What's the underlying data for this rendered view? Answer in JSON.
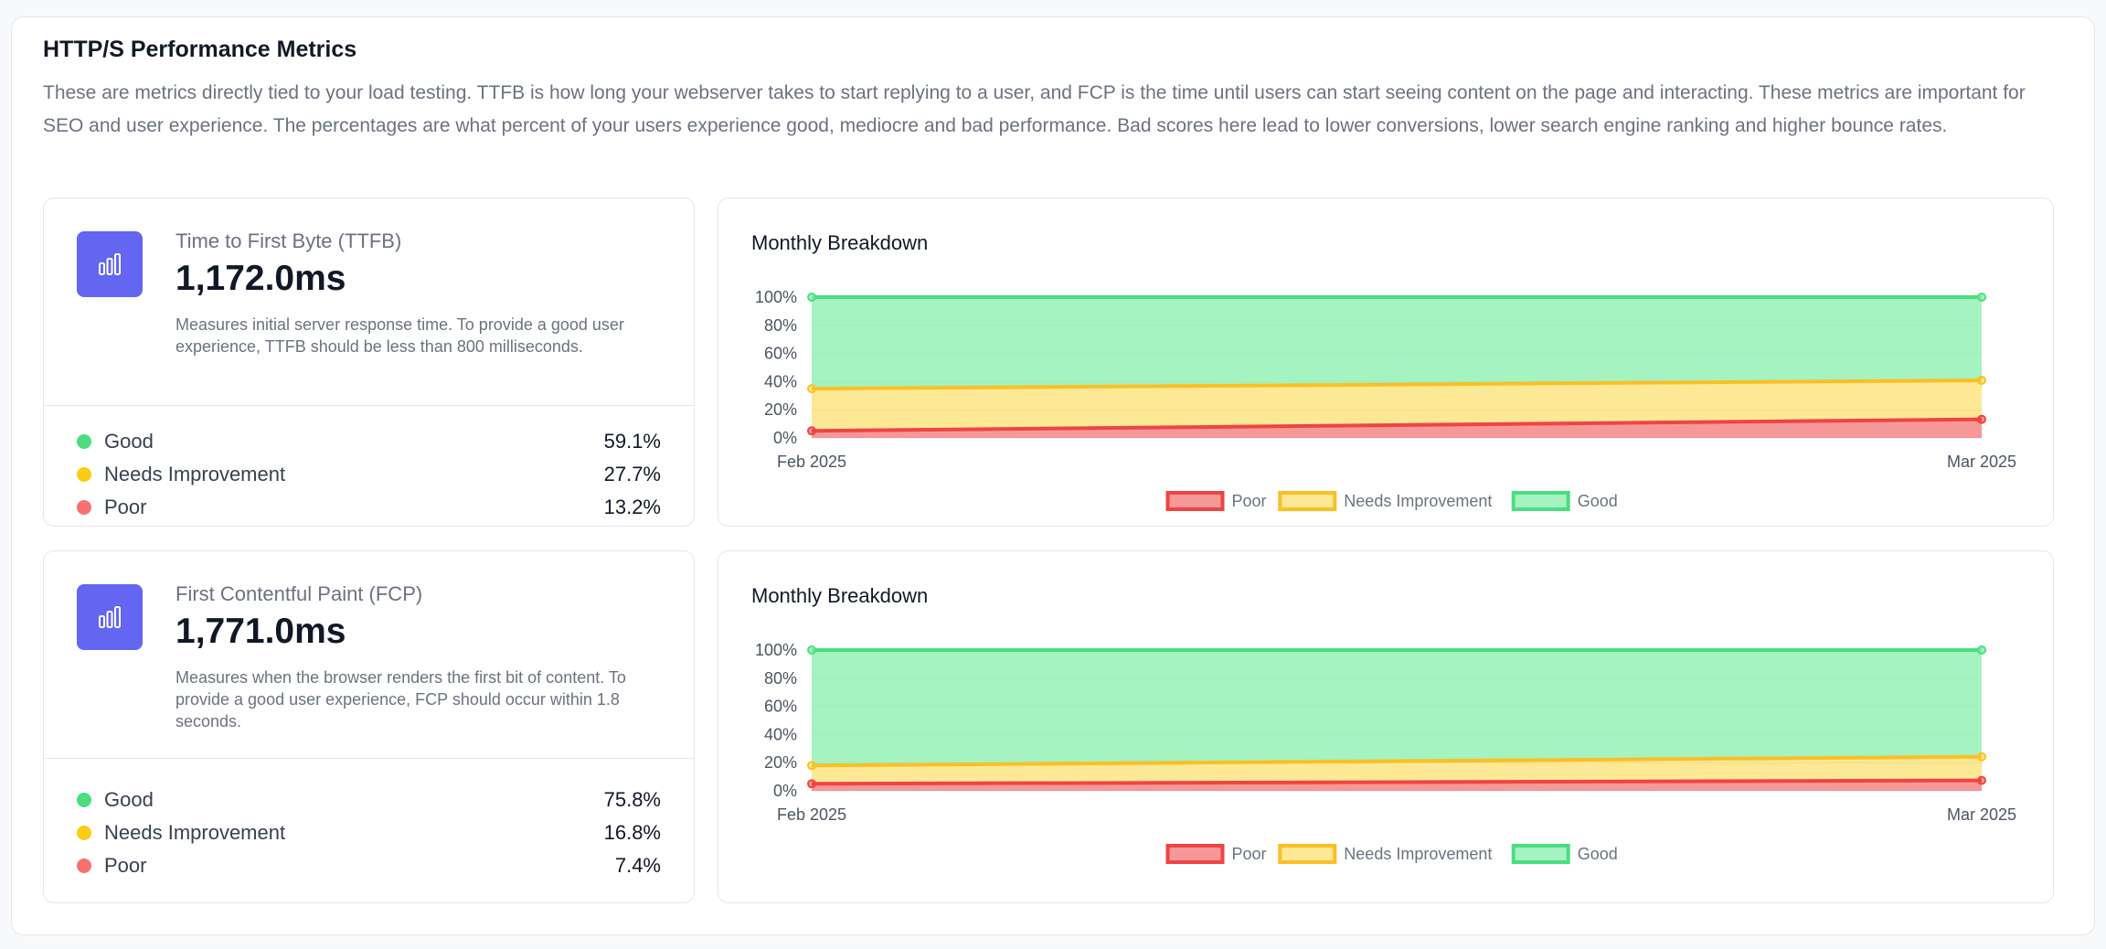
{
  "section": {
    "title": "HTTP/S Performance Metrics",
    "description": "These are metrics directly tied to your load testing. TTFB is how long your webserver takes to start replying to a user, and FCP is the time until users can start seeing content on the page and interacting. These metrics are important for SEO and user experience. The percentages are what percent of your users experience good, mediocre and bad performance. Bad scores here lead to lower conversions, lower search engine ranking and higher bounce rates."
  },
  "colors": {
    "accent": "#6366f1",
    "good": "#4ade80",
    "needs_improvement": "#facc15",
    "poor": "#f87171"
  },
  "metrics": [
    {
      "label": "Time to First Byte (TTFB)",
      "value": "1,172.0ms",
      "note": "Measures initial server response time. To provide a good user experience, TTFB should be less than 800 milliseconds.",
      "icon": "bar-chart-icon",
      "stats": [
        {
          "name": "Good",
          "pct": "59.1%"
        },
        {
          "name": "Needs Improvement",
          "pct": "27.7%"
        },
        {
          "name": "Poor",
          "pct": "13.2%"
        }
      ]
    },
    {
      "label": "First Contentful Paint (FCP)",
      "value": "1,771.0ms",
      "note": "Measures when the browser renders the first bit of content. To provide a good user experience, FCP should occur within 1.8 seconds.",
      "icon": "bar-chart-icon",
      "stats": [
        {
          "name": "Good",
          "pct": "75.8%"
        },
        {
          "name": "Needs Improvement",
          "pct": "16.8%"
        },
        {
          "name": "Poor",
          "pct": "7.4%"
        }
      ]
    }
  ],
  "chart_data": [
    {
      "type": "area",
      "title": "Monthly Breakdown",
      "categories": [
        "Feb 2025",
        "Mar 2025"
      ],
      "stacked": true,
      "ylim": [
        0,
        100
      ],
      "yticks": [
        "0%",
        "20%",
        "40%",
        "60%",
        "80%",
        "100%"
      ],
      "series": [
        {
          "name": "Poor",
          "values": [
            5,
            13.2
          ]
        },
        {
          "name": "Needs Improvement",
          "values": [
            30,
            27.7
          ]
        },
        {
          "name": "Good",
          "values": [
            65,
            59.1
          ]
        }
      ],
      "legend": [
        "Poor",
        "Needs Improvement",
        "Good"
      ],
      "legend_position": "bottom"
    },
    {
      "type": "area",
      "title": "Monthly Breakdown",
      "categories": [
        "Feb 2025",
        "Mar 2025"
      ],
      "stacked": true,
      "ylim": [
        0,
        100
      ],
      "yticks": [
        "0%",
        "20%",
        "40%",
        "60%",
        "80%",
        "100%"
      ],
      "series": [
        {
          "name": "Poor",
          "values": [
            5,
            7.4
          ]
        },
        {
          "name": "Needs Improvement",
          "values": [
            13,
            16.8
          ]
        },
        {
          "name": "Good",
          "values": [
            82,
            75.8
          ]
        }
      ],
      "legend": [
        "Poor",
        "Needs Improvement",
        "Good"
      ],
      "legend_position": "bottom"
    }
  ]
}
